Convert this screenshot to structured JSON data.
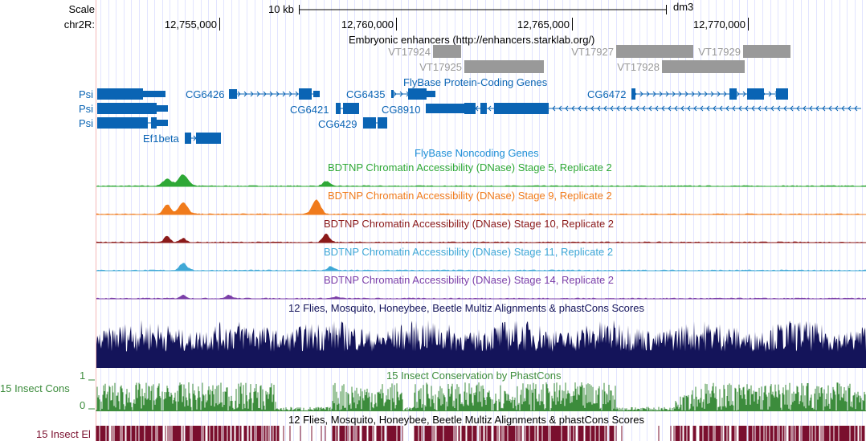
{
  "ruler": {
    "scale_label": "Scale",
    "chrom_label": "chr2R:",
    "scale_bar_label": "10 kb",
    "assembly": "dm3",
    "positions": [
      {
        "label": "12,755,000",
        "pos": 12755000
      },
      {
        "label": "12,760,000",
        "pos": 12760000
      },
      {
        "label": "12,765,000",
        "pos": 12765000
      },
      {
        "label": "12,770,000",
        "pos": 12770000
      }
    ]
  },
  "view": {
    "start": 12751500,
    "end": 12773350
  },
  "tracks": {
    "enhancers": {
      "title": "Embryonic enhancers (http://enhancers.starklab.org/)",
      "color": "#999999",
      "items": [
        {
          "name": "VT17924",
          "start": 12761050,
          "end": 12761850,
          "row": 0
        },
        {
          "name": "VT17925",
          "start": 12761950,
          "end": 12764200,
          "row": 1
        },
        {
          "name": "VT17927",
          "start": 12766250,
          "end": 12768450,
          "row": 0
        },
        {
          "name": "VT17928",
          "start": 12767550,
          "end": 12769900,
          "row": 1
        },
        {
          "name": "VT17929",
          "start": 12769850,
          "end": 12771200,
          "row": 0
        }
      ]
    },
    "genes": {
      "title": "FlyBase Protein-Coding Genes",
      "color": "#0a64b4",
      "items": [
        "Psi",
        "Psi",
        "Psi",
        "CG6426",
        "CG6421",
        "CG6435",
        "CG6429",
        "CG8910",
        "CG6472",
        "Ef1beta"
      ]
    },
    "noncoding": {
      "title": "FlyBase Noncoding Genes",
      "color": "#1e8fd6"
    },
    "dnase": [
      {
        "title": "BDTNP Chromatin Accessibility (DNase) Stage 5, Replicate 2",
        "color": "#2ea836"
      },
      {
        "title": "BDTNP Chromatin Accessibility (DNase) Stage 9, Replicate 2",
        "color": "#f07b1c"
      },
      {
        "title": "BDTNP Chromatin Accessibility (DNase) Stage 10, Replicate 2",
        "color": "#8b1a1a"
      },
      {
        "title": "BDTNP Chromatin Accessibility (DNase) Stage 11, Replicate 2",
        "color": "#3fa8d6"
      },
      {
        "title": "BDTNP Chromatin Accessibility (DNase) Stage 14, Replicate 2",
        "color": "#7b3fa8"
      }
    ],
    "multiz": {
      "title": "12 Flies, Mosquito, Honeybee, Beetle Multiz Alignments & phastCons Scores",
      "color": "#14145a"
    },
    "phastcons": {
      "title": "15 Insect Conservation by PhastCons",
      "side_label": "15 Insect Cons",
      "axis_max": "1",
      "axis_min": "0",
      "color": "#3c8c3c"
    },
    "elements": {
      "title": "12 Flies, Mosquito, Honeybee, Beetle Multiz Alignments & phastCons Scores",
      "side_label": "15 Insect El",
      "color": "#7a0f2e"
    }
  }
}
